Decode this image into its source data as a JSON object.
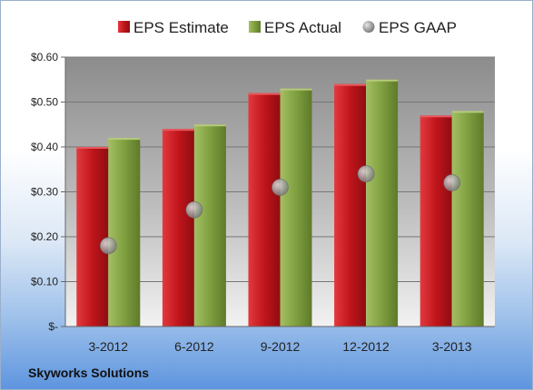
{
  "company": "Skyworks Solutions",
  "chart_data": {
    "type": "bar",
    "categories": [
      "3-2012",
      "6-2012",
      "9-2012",
      "12-2012",
      "3-2013"
    ],
    "series": [
      {
        "name": "EPS Estimate",
        "type": "bar",
        "color": "#c0151b",
        "values": [
          0.4,
          0.44,
          0.52,
          0.54,
          0.47
        ]
      },
      {
        "name": "EPS Actual",
        "type": "bar",
        "color": "#7a9a3a",
        "values": [
          0.42,
          0.45,
          0.53,
          0.55,
          0.48
        ]
      },
      {
        "name": "EPS GAAP",
        "type": "scatter",
        "color": "#a8a8a8",
        "values": [
          0.18,
          0.26,
          0.31,
          0.34,
          0.32
        ]
      }
    ],
    "yticks": [
      "$-",
      "$0.10",
      "$0.20",
      "$0.30",
      "$0.40",
      "$0.50",
      "$0.60"
    ],
    "ylim": [
      0,
      0.6
    ],
    "grid": true,
    "legend": "top"
  }
}
